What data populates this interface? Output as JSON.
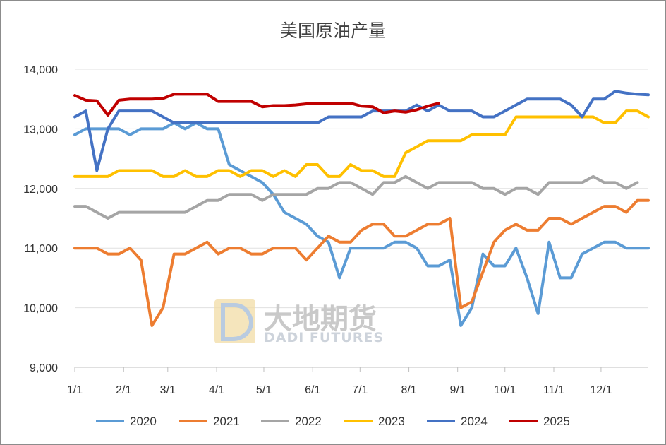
{
  "chart_data": {
    "type": "line",
    "title": "美国原油产量",
    "xlabel": "",
    "ylabel": "",
    "x_range": [
      1,
      53
    ],
    "ylim": [
      9000,
      14000
    ],
    "y_ticks": [
      "9,000",
      "10,000",
      "11,000",
      "12,000",
      "13,000",
      "14,000"
    ],
    "x_ticks": [
      {
        "label": "1/1",
        "week": 1
      },
      {
        "label": "2/1",
        "week": 5.43
      },
      {
        "label": "3/1",
        "week": 9.43
      },
      {
        "label": "4/1",
        "week": 13.86
      },
      {
        "label": "5/1",
        "week": 18.14
      },
      {
        "label": "6/1",
        "week": 22.57
      },
      {
        "label": "7/1",
        "week": 26.86
      },
      {
        "label": "8/1",
        "week": 31.29
      },
      {
        "label": "9/1",
        "week": 35.71
      },
      {
        "label": "10/1",
        "week": 40
      },
      {
        "label": "11/1",
        "week": 44.43
      },
      {
        "label": "12/1",
        "week": 48.71
      }
    ],
    "grid": true,
    "legend": "bottom",
    "series": [
      {
        "name": "2020",
        "color": "#5b9bd5",
        "values": [
          12900,
          13000,
          13000,
          13000,
          13000,
          12900,
          13000,
          13000,
          13000,
          13100,
          13000,
          13100,
          13000,
          13000,
          12400,
          12300,
          12200,
          12100,
          11900,
          11600,
          11500,
          11400,
          11200,
          11100,
          10500,
          11000,
          11000,
          11000,
          11000,
          11100,
          11100,
          11000,
          10700,
          10700,
          10800,
          9700,
          10000,
          10900,
          10700,
          10700,
          11000,
          10500,
          9900,
          11100,
          10500,
          10500,
          10900,
          11000,
          11100,
          11100,
          11000,
          11000,
          11000
        ]
      },
      {
        "name": "2021",
        "color": "#ed7d31",
        "values": [
          11000,
          11000,
          11000,
          10900,
          10900,
          11000,
          10800,
          9700,
          10000,
          10900,
          10900,
          11000,
          11100,
          10900,
          11000,
          11000,
          10900,
          10900,
          11000,
          11000,
          11000,
          10800,
          11000,
          11200,
          11100,
          11100,
          11300,
          11400,
          11400,
          11200,
          11200,
          11300,
          11400,
          11400,
          11500,
          10000,
          10100,
          10600,
          11100,
          11300,
          11400,
          11300,
          11300,
          11500,
          11500,
          11400,
          11500,
          11600,
          11700,
          11700,
          11600,
          11800,
          11800
        ]
      },
      {
        "name": "2022",
        "color": "#a5a5a5",
        "values": [
          11700,
          11700,
          11600,
          11500,
          11600,
          11600,
          11600,
          11600,
          11600,
          11600,
          11600,
          11700,
          11800,
          11800,
          11900,
          11900,
          11900,
          11800,
          11900,
          11900,
          11900,
          11900,
          12000,
          12000,
          12100,
          12100,
          12000,
          11900,
          12100,
          12100,
          12200,
          12100,
          12000,
          12100,
          12100,
          12100,
          12100,
          12000,
          12000,
          11900,
          12000,
          12000,
          11900,
          12100,
          12100,
          12100,
          12100,
          12200,
          12100,
          12100,
          12000,
          12100
        ]
      },
      {
        "name": "2023",
        "color": "#ffc000",
        "values": [
          12200,
          12200,
          12200,
          12200,
          12300,
          12300,
          12300,
          12300,
          12200,
          12200,
          12300,
          12200,
          12200,
          12300,
          12300,
          12200,
          12300,
          12300,
          12200,
          12300,
          12200,
          12400,
          12400,
          12200,
          12200,
          12400,
          12300,
          12300,
          12200,
          12200,
          12600,
          12700,
          12800,
          12800,
          12800,
          12800,
          12900,
          12900,
          12900,
          12900,
          13200,
          13200,
          13200,
          13200,
          13200,
          13200,
          13200,
          13200,
          13100,
          13100,
          13300,
          13300,
          13200
        ]
      },
      {
        "name": "2024",
        "color": "#4472c4",
        "values": [
          13200,
          13300,
          12300,
          13000,
          13300,
          13300,
          13300,
          13300,
          13200,
          13100,
          13100,
          13100,
          13100,
          13100,
          13100,
          13100,
          13100,
          13100,
          13100,
          13100,
          13100,
          13100,
          13100,
          13200,
          13200,
          13200,
          13200,
          13300,
          13300,
          13300,
          13300,
          13400,
          13300,
          13400,
          13300,
          13300,
          13300,
          13200,
          13200,
          13300,
          13400,
          13500,
          13500,
          13500,
          13500,
          13400,
          13200,
          13500,
          13500,
          13631,
          13600,
          13580,
          13570
        ]
      },
      {
        "name": "2025",
        "color": "#c00000",
        "values": [
          13560,
          13480,
          13470,
          13230,
          13480,
          13500,
          13500,
          13500,
          13510,
          13580,
          13580,
          13580,
          13580,
          13460,
          13460,
          13460,
          13460,
          13370,
          13390,
          13390,
          13400,
          13420,
          13430,
          13430,
          13430,
          13430,
          13380,
          13370,
          13270,
          13300,
          13280,
          13320,
          13380,
          13430
        ]
      }
    ]
  },
  "watermark": {
    "cn": "大地期货",
    "en": "DADI FUTURES"
  }
}
